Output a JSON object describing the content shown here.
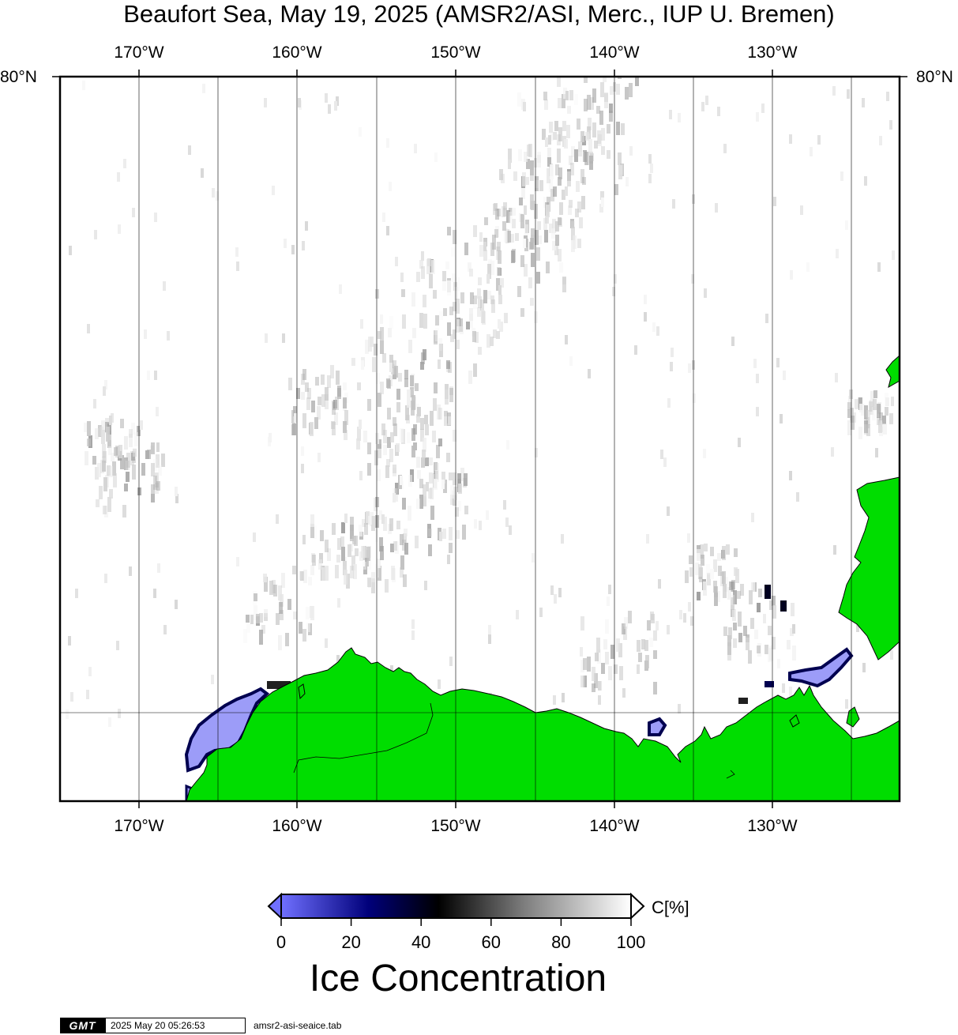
{
  "title": "Beaufort Sea, May 19, 2025 (AMSR2/ASI, Merc., IUP U. Bremen)",
  "map": {
    "longitude_labels": [
      "170°W",
      "160°W",
      "150°W",
      "140°W",
      "130°W"
    ],
    "latitude_labels": {
      "left": "80°N",
      "right": "80°N"
    },
    "colors": {
      "land": "#00dd00",
      "open_water": "#ffffff",
      "low_ice": "#9c9cf8",
      "dark_ice": "#000050",
      "grid": "#000000"
    }
  },
  "colorbar": {
    "ticks": [
      "0",
      "20",
      "40",
      "60",
      "80",
      "100"
    ],
    "unit": "C[%]",
    "title": "Ice Concentration",
    "gradient_colors": [
      "#7070ff",
      "#00007a",
      "#000000",
      "#808080",
      "#ffffff"
    ]
  },
  "footer": {
    "logo": "GMT",
    "timestamp": "2025 May 20 05:26:53",
    "source_file": "amsr2-asi-seaice.tab"
  }
}
